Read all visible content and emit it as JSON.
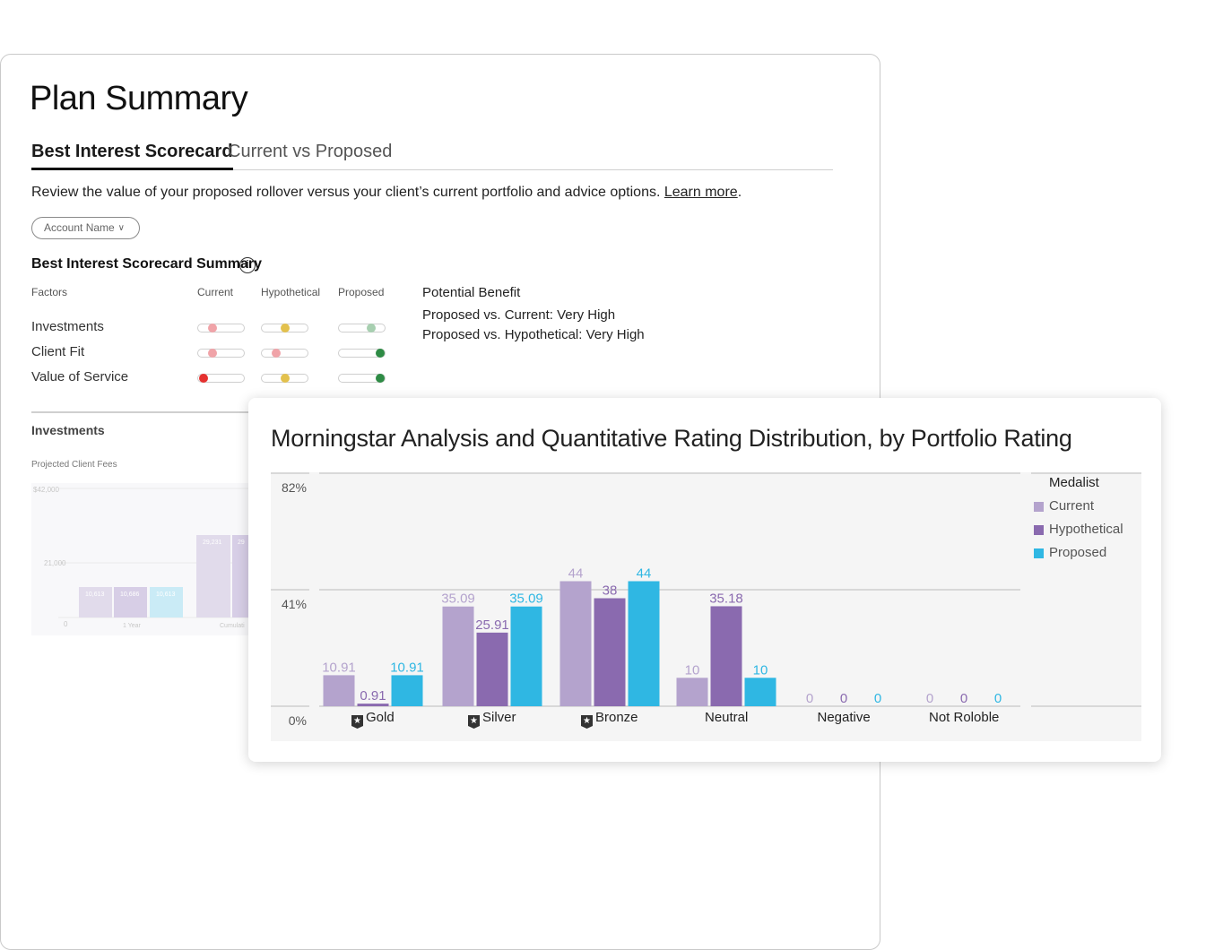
{
  "plan_summary": {
    "title": "Plan Summary",
    "tabs": [
      {
        "label": "Best Interest Scorecard",
        "active": true
      },
      {
        "label": "Current vs Proposed",
        "active": false
      }
    ],
    "description": "Review the value of your proposed rollover versus your client’s current portfolio and advice options.",
    "learn_more": "Learn more",
    "account_dropdown": "Account Name",
    "scorecard_title": "Best Interest Scorecard Summary",
    "columns": [
      "Factors",
      "Current",
      "Hypothetical",
      "Proposed"
    ],
    "factors": [
      {
        "name": "Investments",
        "current": {
          "level": 0.25,
          "color": "#f0a3a8"
        },
        "hypothetical": {
          "level": 0.5,
          "color": "#e3c14d"
        },
        "proposed": {
          "level": 0.75,
          "color": "#a7cfb0"
        }
      },
      {
        "name": "Client Fit",
        "current": {
          "level": 0.25,
          "color": "#f0a3a8"
        },
        "hypothetical": {
          "level": 0.25,
          "color": "#f0a3a8"
        },
        "proposed": {
          "level": 1.0,
          "color": "#2e8b45"
        }
      },
      {
        "name": "Value of Service",
        "current": {
          "level": 0.0,
          "color": "#e5312f"
        },
        "hypothetical": {
          "level": 0.5,
          "color": "#e3c14d"
        },
        "proposed": {
          "level": 1.0,
          "color": "#2e8b45"
        }
      }
    ],
    "potential_benefit": {
      "title": "Potential Benefit",
      "lines": [
        "Proposed vs. Current: Very High",
        "Proposed vs. Hypothetical: Very High"
      ]
    },
    "investments_heading": "Investments",
    "fees_heading": "Projected Client Fees",
    "fees_chart": {
      "y_ticks": [
        "$42,000",
        "21,000",
        "0"
      ],
      "bars": [
        "10,613",
        "10,686",
        "10,613",
        "29,231",
        "29"
      ],
      "x_labels": [
        "1 Year",
        "Cumulati"
      ]
    }
  },
  "chart_data": {
    "type": "bar",
    "title": "Morningstar Analysis and Quantitative Rating Distribution, by Portfolio Rating",
    "categories": [
      "Gold",
      "Silver",
      "Bronze",
      "Neutral",
      "Negative",
      "Not Roloble"
    ],
    "category_badges": [
      true,
      true,
      true,
      false,
      false,
      false
    ],
    "series": [
      {
        "name": "Current",
        "color": "#b4a3cd",
        "values": [
          10.91,
          35.09,
          44,
          10,
          0,
          0
        ],
        "labels": [
          "10.91",
          "35.09",
          "44",
          "10",
          "0",
          "0"
        ]
      },
      {
        "name": "Hypothetical",
        "color": "#8a6aaf",
        "values": [
          0.91,
          25.91,
          38,
          35.18,
          0,
          0
        ],
        "labels": [
          "0.91",
          "25.91",
          "38",
          "35.18",
          "0",
          "0"
        ]
      },
      {
        "name": "Proposed",
        "color": "#2fb7e3",
        "values": [
          10.91,
          35.09,
          44,
          10,
          0,
          0
        ],
        "labels": [
          "10.91",
          "35.09",
          "44",
          "10",
          "0",
          "0"
        ]
      }
    ],
    "legend_title": "Medalist",
    "legend_position": "right",
    "y_ticks": [
      "82%",
      "41%",
      "0%"
    ],
    "ylim": [
      0,
      82
    ],
    "grid": true
  }
}
